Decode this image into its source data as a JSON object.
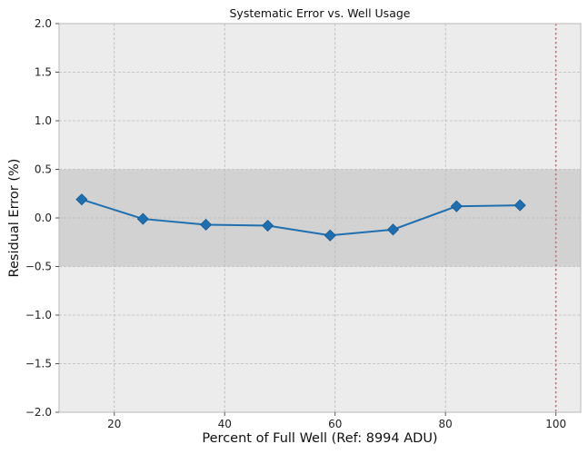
{
  "chart_data": {
    "type": "line",
    "title": "Systematic Error vs. Well Usage",
    "xlabel": "Percent of Full Well (Ref: 8994 ADU)",
    "ylabel": "Residual Error (%)",
    "xlim": [
      10,
      104.5
    ],
    "ylim": [
      -2.0,
      2.0
    ],
    "x_ticks": [
      20,
      40,
      60,
      80,
      100
    ],
    "y_ticks": [
      -2.0,
      -1.5,
      -1.0,
      -0.5,
      0.0,
      0.5,
      1.0,
      1.5,
      2.0
    ],
    "x_tick_labels": [
      "20",
      "40",
      "60",
      "80",
      "100"
    ],
    "y_tick_labels": [
      "−2.0",
      "−1.5",
      "−1.0",
      "−0.5",
      "0.0",
      "0.5",
      "1.0",
      "1.5",
      "2.0"
    ],
    "grid": true,
    "series": [
      {
        "x": [
          14.1,
          25.2,
          36.6,
          47.8,
          59.1,
          70.5,
          82.0,
          93.5
        ],
        "y": [
          0.19,
          -0.01,
          -0.07,
          -0.08,
          -0.18,
          -0.12,
          0.12,
          0.13
        ],
        "marker": "diamond"
      }
    ],
    "tolerance_band": [
      -0.5,
      0.5
    ],
    "vline": {
      "x": 100,
      "style": "dotted"
    },
    "colors": {
      "line": "#1f6fb0",
      "band": "#d2d2d2",
      "background": "#ececec",
      "vline": "#e06666",
      "grid": "#b9b9b9"
    }
  }
}
